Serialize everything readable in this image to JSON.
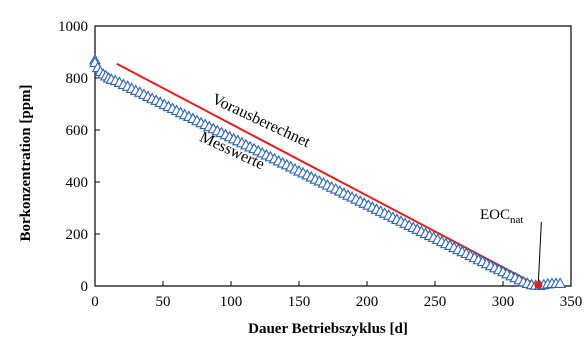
{
  "chart_data": {
    "type": "scatter",
    "xlabel": "Dauer Betriebszyklus [d]",
    "ylabel": "Borkonzentration [ppm]",
    "xlim": [
      0,
      350
    ],
    "ylim": [
      0,
      1000
    ],
    "xticks": [
      "0",
      "50",
      "100",
      "150",
      "200",
      "250",
      "300",
      "350"
    ],
    "yticks": [
      "0",
      "200",
      "400",
      "600",
      "800",
      "1000"
    ],
    "grid": false,
    "series": [
      {
        "name": "Messwerte",
        "kind": "scatter",
        "marker": "triangle",
        "color": "#2a63b5",
        "points": [
          [
            0,
            870
          ],
          [
            0,
            860
          ],
          [
            2,
            840
          ],
          [
            4,
            825
          ],
          [
            6,
            815
          ],
          [
            8,
            808
          ],
          [
            10,
            800
          ],
          [
            12,
            795
          ],
          [
            15,
            790
          ],
          [
            18,
            783
          ],
          [
            21,
            775
          ],
          [
            24,
            768
          ],
          [
            27,
            760
          ],
          [
            30,
            752
          ],
          [
            33,
            745
          ],
          [
            36,
            737
          ],
          [
            39,
            729
          ],
          [
            42,
            721
          ],
          [
            45,
            714
          ],
          [
            48,
            706
          ],
          [
            51,
            698
          ],
          [
            54,
            690
          ],
          [
            57,
            683
          ],
          [
            60,
            675
          ],
          [
            63,
            667
          ],
          [
            66,
            659
          ],
          [
            69,
            652
          ],
          [
            72,
            644
          ],
          [
            75,
            636
          ],
          [
            78,
            628
          ],
          [
            81,
            621
          ],
          [
            84,
            613
          ],
          [
            87,
            605
          ],
          [
            90,
            597
          ],
          [
            93,
            590
          ],
          [
            96,
            582
          ],
          [
            99,
            574
          ],
          [
            102,
            566
          ],
          [
            105,
            559
          ],
          [
            108,
            551
          ],
          [
            111,
            543
          ],
          [
            114,
            535
          ],
          [
            117,
            528
          ],
          [
            120,
            520
          ],
          [
            123,
            512
          ],
          [
            126,
            504
          ],
          [
            129,
            497
          ],
          [
            132,
            489
          ],
          [
            135,
            481
          ],
          [
            138,
            473
          ],
          [
            141,
            466
          ],
          [
            144,
            458
          ],
          [
            147,
            450
          ],
          [
            150,
            442
          ],
          [
            153,
            435
          ],
          [
            156,
            427
          ],
          [
            159,
            419
          ],
          [
            162,
            411
          ],
          [
            165,
            404
          ],
          [
            168,
            396
          ],
          [
            171,
            388
          ],
          [
            174,
            380
          ],
          [
            177,
            373
          ],
          [
            180,
            365
          ],
          [
            183,
            357
          ],
          [
            186,
            349
          ],
          [
            189,
            342
          ],
          [
            192,
            334
          ],
          [
            195,
            326
          ],
          [
            198,
            318
          ],
          [
            201,
            311
          ],
          [
            204,
            303
          ],
          [
            207,
            295
          ],
          [
            210,
            287
          ],
          [
            213,
            280
          ],
          [
            216,
            272
          ],
          [
            219,
            264
          ],
          [
            222,
            256
          ],
          [
            225,
            249
          ],
          [
            228,
            241
          ],
          [
            231,
            233
          ],
          [
            234,
            225
          ],
          [
            237,
            218
          ],
          [
            240,
            210
          ],
          [
            243,
            202
          ],
          [
            246,
            194
          ],
          [
            249,
            187
          ],
          [
            252,
            179
          ],
          [
            255,
            171
          ],
          [
            258,
            163
          ],
          [
            261,
            156
          ],
          [
            264,
            148
          ],
          [
            267,
            140
          ],
          [
            270,
            132
          ],
          [
            273,
            125
          ],
          [
            276,
            117
          ],
          [
            279,
            109
          ],
          [
            282,
            101
          ],
          [
            285,
            94
          ],
          [
            288,
            86
          ],
          [
            291,
            78
          ],
          [
            294,
            70
          ],
          [
            297,
            63
          ],
          [
            300,
            55
          ],
          [
            303,
            47
          ],
          [
            306,
            39
          ],
          [
            309,
            32
          ],
          [
            312,
            24
          ],
          [
            315,
            16
          ],
          [
            318,
            10
          ],
          [
            321,
            5
          ],
          [
            324,
            3
          ],
          [
            327,
            2
          ],
          [
            330,
            5
          ],
          [
            333,
            8
          ],
          [
            336,
            10
          ],
          [
            339,
            10
          ],
          [
            342,
            10
          ]
        ]
      },
      {
        "name": "Vorausberechnet",
        "kind": "line",
        "color": "#e02020",
        "points": [
          [
            16,
            855
          ],
          [
            326,
            0
          ]
        ]
      }
    ],
    "annotations": {
      "predicted_label": "Vorausberechnet",
      "measured_label": "Messwerte",
      "eoc_main": "EOC",
      "eoc_sub": "nat",
      "eoc_point": [
        326,
        0
      ]
    }
  }
}
